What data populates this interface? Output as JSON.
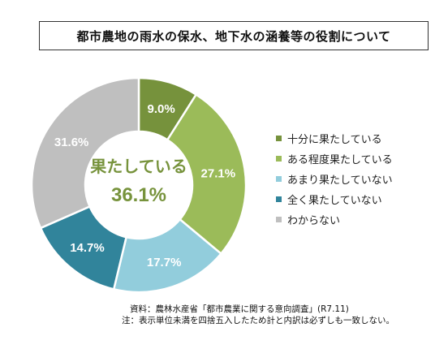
{
  "title": "都市農地の雨水の保水、地下水の涵養等の役割について",
  "chart_data": {
    "type": "pie",
    "donut": true,
    "categories": [
      "十分に果たしている",
      "ある程度果たしている",
      "あまり果たしていない",
      "全く果たしていない",
      "わからない"
    ],
    "values": [
      9.0,
      27.1,
      17.7,
      14.7,
      31.6
    ],
    "value_labels": [
      "9.0%",
      "27.1%",
      "17.7%",
      "14.7%",
      "31.6%"
    ],
    "colors": [
      "#76923c",
      "#9bbb59",
      "#92cddc",
      "#31849b",
      "#bfbfbf"
    ],
    "label_colors": [
      "#ffffff",
      "#ffffff",
      "#ffffff",
      "#ffffff",
      "#ffffff"
    ],
    "center_label": "果たしている",
    "center_value": "36.1%",
    "center_color": "#77933c",
    "legend_position": "right"
  },
  "footnote": {
    "source": "資料：農林水産省「都市農業に関する意向調査」(R7.11)",
    "note": "注：表示単位未満を四捨五入したため計と内訳は必ずしも一致しない。"
  }
}
